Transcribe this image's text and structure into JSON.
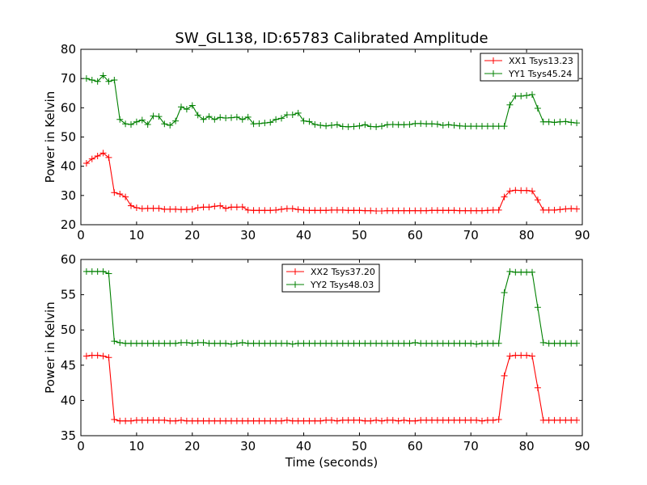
{
  "figure": {
    "title": "SW_GL138, ID:65783 Calibrated Amplitude"
  },
  "chart_data": [
    {
      "type": "line",
      "title": "SW_GL138, ID:65783 Calibrated Amplitude",
      "xlabel": "",
      "ylabel": "Power in Kelvin",
      "xlim": [
        0,
        90
      ],
      "ylim": [
        20,
        80
      ],
      "xticks": [
        0,
        10,
        20,
        30,
        40,
        50,
        60,
        70,
        80,
        90
      ],
      "yticks": [
        20,
        30,
        40,
        50,
        60,
        70,
        80
      ],
      "grid": false,
      "legend": "top-right",
      "x": [
        1,
        2,
        3,
        4,
        5,
        6,
        7,
        8,
        9,
        10,
        11,
        12,
        13,
        14,
        15,
        16,
        17,
        18,
        19,
        20,
        21,
        22,
        23,
        24,
        25,
        26,
        27,
        28,
        29,
        30,
        31,
        32,
        33,
        34,
        35,
        36,
        37,
        38,
        39,
        40,
        41,
        42,
        43,
        44,
        45,
        46,
        47,
        48,
        49,
        50,
        51,
        52,
        53,
        54,
        55,
        56,
        57,
        58,
        59,
        60,
        61,
        62,
        63,
        64,
        65,
        66,
        67,
        68,
        69,
        70,
        71,
        72,
        73,
        74,
        75,
        76,
        77,
        78,
        79,
        80,
        81,
        82,
        83,
        84,
        85,
        86,
        87,
        88,
        89
      ],
      "series": [
        {
          "name": "XX1 Tsys13.23",
          "color": "#ff0000",
          "values": [
            41,
            42.5,
            43.5,
            44.5,
            43,
            31,
            30.5,
            29.5,
            26.5,
            25.8,
            25.5,
            25.6,
            25.6,
            25.6,
            25.3,
            25.3,
            25.3,
            25.2,
            25.2,
            25.3,
            25.8,
            26,
            26,
            26.3,
            26.5,
            25.6,
            26,
            26,
            26.1,
            25,
            24.9,
            24.9,
            24.9,
            24.9,
            25,
            25.3,
            25.5,
            25.5,
            25.2,
            25,
            24.9,
            24.9,
            24.9,
            24.9,
            25,
            25,
            25,
            24.9,
            24.9,
            24.9,
            24.8,
            24.8,
            24.7,
            24.7,
            24.8,
            24.8,
            24.8,
            24.8,
            24.8,
            24.8,
            24.8,
            24.8,
            24.9,
            24.9,
            24.9,
            24.9,
            24.9,
            24.8,
            24.8,
            24.8,
            24.8,
            24.8,
            24.9,
            25,
            25,
            29.5,
            31.5,
            31.8,
            31.7,
            31.7,
            31.5,
            28.5,
            25,
            25,
            25,
            25.2,
            25.4,
            25.5,
            25.4
          ]
        },
        {
          "name": "YY1 Tsys45.24",
          "color": "#008000",
          "values": [
            70,
            69.5,
            69,
            71,
            69,
            69.5,
            56,
            54.5,
            54.3,
            55.2,
            55.8,
            54.3,
            57.2,
            57,
            54.5,
            54,
            55.5,
            60.3,
            59.5,
            60.8,
            57.5,
            56,
            57,
            56,
            56.7,
            56.5,
            56.6,
            56.8,
            56,
            56.8,
            54.5,
            54.6,
            54.8,
            55,
            56,
            56.4,
            57.6,
            57.6,
            58.2,
            55.5,
            55.3,
            54.3,
            54,
            53.8,
            54,
            54.2,
            53.6,
            53.5,
            53.6,
            53.8,
            54.2,
            53.6,
            53.5,
            53.7,
            54.2,
            54.3,
            54.2,
            54.2,
            54.3,
            54.6,
            54.6,
            54.5,
            54.5,
            54.4,
            54,
            54.2,
            54,
            53.8,
            53.7,
            53.7,
            53.7,
            53.7,
            53.7,
            53.7,
            53.7,
            53.7,
            61,
            64,
            64,
            64.2,
            64.5,
            59.8,
            55.2,
            55.2,
            55,
            55.2,
            55.3,
            55,
            54.8
          ]
        }
      ]
    },
    {
      "type": "line",
      "title": "",
      "xlabel": "Time (seconds)",
      "ylabel": "Power in Kelvin",
      "xlim": [
        0,
        90
      ],
      "ylim": [
        35,
        60
      ],
      "xticks": [
        0,
        10,
        20,
        30,
        40,
        50,
        60,
        70,
        80,
        90
      ],
      "yticks": [
        35,
        40,
        45,
        50,
        55,
        60
      ],
      "grid": false,
      "legend": "top-center",
      "x": [
        1,
        2,
        3,
        4,
        5,
        6,
        7,
        8,
        9,
        10,
        11,
        12,
        13,
        14,
        15,
        16,
        17,
        18,
        19,
        20,
        21,
        22,
        23,
        24,
        25,
        26,
        27,
        28,
        29,
        30,
        31,
        32,
        33,
        34,
        35,
        36,
        37,
        38,
        39,
        40,
        41,
        42,
        43,
        44,
        45,
        46,
        47,
        48,
        49,
        50,
        51,
        52,
        53,
        54,
        55,
        56,
        57,
        58,
        59,
        60,
        61,
        62,
        63,
        64,
        65,
        66,
        67,
        68,
        69,
        70,
        71,
        72,
        73,
        74,
        75,
        76,
        77,
        78,
        79,
        80,
        81,
        82,
        83,
        84,
        85,
        86,
        87,
        88,
        89
      ],
      "series": [
        {
          "name": "XX2 Tsys37.20",
          "color": "#ff0000",
          "values": [
            46.3,
            46.4,
            46.4,
            46.3,
            46.1,
            37.3,
            37.1,
            37.1,
            37.1,
            37.2,
            37.2,
            37.2,
            37.2,
            37.2,
            37.2,
            37.1,
            37.1,
            37.2,
            37.1,
            37.1,
            37.1,
            37.1,
            37.1,
            37.1,
            37.1,
            37.1,
            37.1,
            37.1,
            37.1,
            37.1,
            37.1,
            37.1,
            37.1,
            37.1,
            37.1,
            37.1,
            37.2,
            37.1,
            37.1,
            37.1,
            37.1,
            37.1,
            37.1,
            37.2,
            37.2,
            37.1,
            37.2,
            37.2,
            37.2,
            37.2,
            37.1,
            37.1,
            37.2,
            37.1,
            37.2,
            37.2,
            37.1,
            37.2,
            37.1,
            37.1,
            37.2,
            37.2,
            37.2,
            37.2,
            37.2,
            37.2,
            37.2,
            37.2,
            37.2,
            37.2,
            37.2,
            37.1,
            37.2,
            37.2,
            37.3,
            43.5,
            46.3,
            46.4,
            46.4,
            46.4,
            46.3,
            41.8,
            37.2,
            37.2,
            37.2,
            37.2,
            37.2,
            37.2,
            37.2
          ]
        },
        {
          "name": "YY2 Tsys48.03",
          "color": "#008000",
          "values": [
            58.3,
            58.3,
            58.3,
            58.3,
            58,
            48.4,
            48.2,
            48.1,
            48.1,
            48.1,
            48.1,
            48.1,
            48.1,
            48.1,
            48.1,
            48.1,
            48.1,
            48.2,
            48.2,
            48.1,
            48.2,
            48.2,
            48.1,
            48.1,
            48.1,
            48.1,
            48,
            48.1,
            48.2,
            48.1,
            48.1,
            48.1,
            48.1,
            48.1,
            48.1,
            48.1,
            48.1,
            48,
            48.1,
            48.1,
            48.1,
            48.1,
            48.1,
            48.1,
            48.1,
            48.1,
            48.1,
            48.1,
            48.1,
            48.1,
            48.1,
            48.1,
            48.1,
            48.1,
            48.1,
            48.1,
            48.1,
            48.1,
            48.1,
            48.2,
            48.1,
            48.1,
            48.1,
            48.1,
            48.1,
            48.1,
            48.1,
            48.1,
            48.1,
            48.1,
            48,
            48.1,
            48.1,
            48.1,
            48.1,
            55.3,
            58.3,
            58.2,
            58.2,
            58.2,
            58.2,
            53.2,
            48.2,
            48.1,
            48.1,
            48.1,
            48.1,
            48.1,
            48.1
          ]
        }
      ]
    }
  ]
}
